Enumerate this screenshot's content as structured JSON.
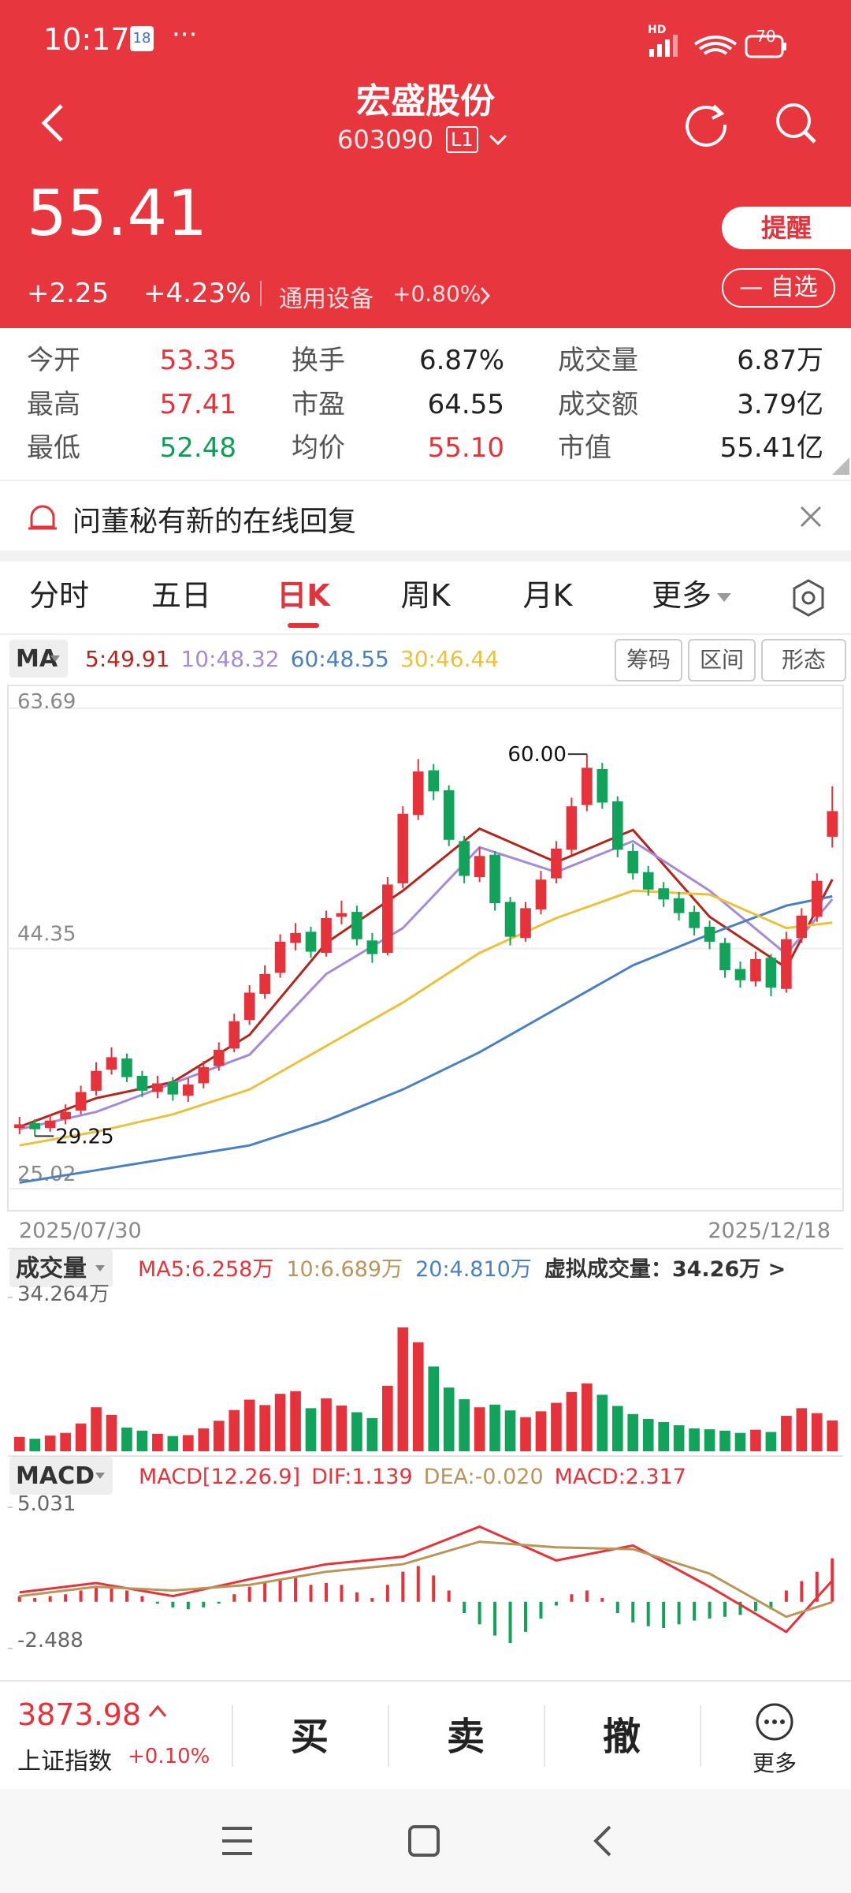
{
  "status": {
    "time": "10:17",
    "badge": "18",
    "net": "HD",
    "battery": "70"
  },
  "header": {
    "name": "宏盛股份",
    "code": "603090",
    "level": "L1",
    "price": "55.41",
    "change": "+2.25",
    "change_pct": "+4.23%",
    "sector": "通用设备",
    "sector_change": "+0.80%",
    "remind": "提醒",
    "watch": "自选"
  },
  "quote": {
    "rows": [
      [
        "今开",
        "53.35",
        "换手",
        "6.87%",
        "成交量",
        "6.87万"
      ],
      [
        "最高",
        "57.41",
        "市盈",
        "64.55",
        "成交额",
        "3.79亿"
      ],
      [
        "最低",
        "52.48",
        "均价",
        "55.10",
        "市值",
        "55.41亿"
      ]
    ]
  },
  "notice": {
    "text": "问董秘有新的在线回复"
  },
  "tabs": {
    "items": [
      "分时",
      "五日",
      "日K",
      "周K",
      "月K",
      "更多"
    ],
    "active": 2
  },
  "tools": [
    "筹码",
    "区间",
    "形态"
  ],
  "chart_data": [
    {
      "type": "candlestick",
      "selector": "MA",
      "x_start": "2025/07/30",
      "x_end": "2025/12/18",
      "ylim": [
        25.02,
        63.69
      ],
      "yticks": [
        63.69,
        44.35,
        25.02
      ],
      "up_color": "#e5323b",
      "down_color": "#12a35a",
      "open": [
        29.9,
        30.3,
        29.9,
        30.6,
        31.3,
        32.9,
        34.6,
        35.5,
        34.1,
        32.8,
        33.6,
        32.5,
        33.5,
        34.9,
        36.3,
        38.6,
        40.7,
        42.4,
        44.8,
        45.7,
        44.0,
        46.9,
        47.3,
        45.0,
        44.0,
        49.6,
        55.1,
        58.7,
        57.1,
        53.0,
        50.1,
        51.9,
        48.1,
        45.2,
        47.5,
        50.0,
        52.3,
        55.9,
        58.8,
        56.2,
        52.2,
        50.5,
        49.2,
        48.4,
        47.3,
        46.1,
        44.8,
        42.7,
        41.7,
        43.6,
        41.1,
        45.2,
        46.9,
        53.35
      ],
      "high": [
        30.8,
        30.6,
        31.0,
        31.8,
        33.3,
        35.2,
        36.4,
        35.9,
        34.5,
        34.1,
        34.0,
        33.9,
        35.3,
        36.8,
        39.1,
        41.4,
        43.0,
        45.5,
        46.4,
        46.1,
        47.4,
        48.2,
        47.8,
        45.6,
        50.1,
        55.8,
        59.6,
        59.2,
        57.5,
        53.4,
        52.5,
        52.2,
        48.5,
        48.1,
        50.6,
        53.0,
        56.5,
        60.0,
        59.3,
        56.6,
        52.8,
        51.0,
        49.7,
        48.9,
        47.8,
        46.6,
        45.2,
        43.3,
        44.1,
        43.9,
        45.7,
        47.6,
        50.4,
        57.41
      ],
      "low": [
        29.4,
        29.25,
        29.6,
        30.2,
        31.0,
        32.5,
        34.2,
        33.6,
        32.4,
        32.3,
        32.1,
        32.0,
        33.1,
        34.5,
        36.0,
        38.2,
        40.3,
        42.0,
        44.2,
        43.6,
        43.7,
        46.3,
        44.6,
        43.2,
        43.8,
        49.2,
        54.7,
        56.3,
        52.6,
        49.6,
        49.7,
        47.4,
        44.6,
        44.9,
        47.1,
        49.6,
        51.9,
        55.4,
        55.6,
        51.7,
        49.9,
        48.6,
        47.7,
        46.6,
        45.4,
        44.3,
        42.0,
        41.2,
        41.3,
        40.5,
        40.8,
        44.8,
        46.5,
        52.48
      ],
      "close": [
        30.2,
        29.8,
        30.5,
        31.2,
        32.8,
        34.5,
        35.6,
        34.0,
        32.9,
        33.5,
        32.6,
        33.4,
        34.8,
        36.2,
        38.5,
        40.8,
        42.3,
        44.9,
        45.6,
        44.1,
        46.8,
        47.2,
        45.1,
        43.9,
        49.5,
        55.2,
        58.6,
        57.0,
        53.1,
        50.2,
        51.8,
        48.0,
        45.3,
        47.6,
        49.9,
        52.4,
        55.8,
        58.9,
        56.1,
        52.3,
        50.4,
        49.1,
        48.3,
        47.2,
        46.0,
        44.9,
        42.6,
        41.8,
        43.5,
        41.2,
        45.1,
        47.0,
        49.8,
        55.41
      ],
      "max_label": {
        "value": 60,
        "label": "60.00"
      },
      "min_label": {
        "value": 29.25,
        "label": "29.25"
      },
      "line_x": [
        0,
        5,
        10,
        15,
        20,
        25,
        30,
        35,
        40,
        45,
        50,
        53
      ],
      "lines": [
        {
          "name": "5:49.91",
          "color": "#b3261e",
          "values": [
            30.0,
            32.3,
            33.6,
            37.4,
            44.8,
            49.0,
            54.0,
            51.3,
            53.9,
            46.9,
            42.8,
            49.91
          ]
        },
        {
          "name": "10:48.32",
          "color": "#a58ad8",
          "values": [
            29.8,
            31.2,
            33.5,
            35.8,
            42.3,
            46.0,
            52.5,
            50.5,
            53.0,
            49.0,
            43.9,
            48.32
          ]
        },
        {
          "name": "60:48.55",
          "color": "#4a7fc1",
          "values": [
            25.5,
            26.5,
            27.5,
            28.5,
            30.5,
            33.0,
            36.0,
            39.5,
            43.0,
            45.5,
            47.8,
            48.55
          ]
        },
        {
          "name": "30:46.44",
          "color": "#e9c23c",
          "values": [
            28.5,
            29.6,
            31.0,
            33.0,
            36.5,
            40.0,
            44.0,
            46.8,
            49.0,
            48.7,
            46.0,
            46.44
          ]
        }
      ]
    },
    {
      "type": "bar",
      "selector": "成交量",
      "legend": [
        {
          "text": "MA5:6.258万",
          "color": "#e5323b"
        },
        {
          "text": "10:6.689万",
          "color": "#b8955a"
        },
        {
          "text": "20:4.810万",
          "color": "#4a7fc1"
        },
        {
          "text": "虚拟成交量：34.26万 >",
          "color": "#333"
        }
      ],
      "ylim": [
        0,
        34.264
      ],
      "yticks": [
        {
          "value": 34.264,
          "label": "34.264万"
        }
      ],
      "values": [
        3.2,
        2.8,
        3.5,
        4.1,
        6.2,
        9.8,
        8.1,
        5.3,
        4.6,
        3.9,
        3.4,
        3.6,
        5.1,
        6.8,
        9.2,
        11.5,
        10.3,
        12.8,
        13.4,
        9.6,
        11.8,
        10.2,
        8.7,
        7.4,
        14.6,
        27.6,
        24.3,
        18.9,
        14.2,
        11.6,
        9.8,
        10.4,
        9.1,
        7.6,
        8.9,
        10.8,
        13.2,
        15.1,
        12.6,
        10.1,
        8.3,
        7.2,
        6.5,
        5.8,
        5.1,
        4.9,
        4.6,
        4.1,
        4.8,
        4.3,
        7.9,
        9.6,
        8.5,
        6.87
      ]
    },
    {
      "type": "macd",
      "selector": "MACD",
      "legend": [
        {
          "text": "MACD[12.26.9]",
          "color": "#e5323b"
        },
        {
          "text": "DIF:1.139",
          "color": "#e5323b"
        },
        {
          "text": "DEA:-0.020",
          "color": "#b8955a"
        },
        {
          "text": "MACD:2.317",
          "color": "#e5323b"
        }
      ],
      "ylim": [
        -2.488,
        5.031
      ],
      "yticks": [
        5.031,
        -2.488
      ],
      "values": [
        0.3,
        0.2,
        0.3,
        0.4,
        0.6,
        0.8,
        0.9,
        0.6,
        0.3,
        -0.1,
        -0.3,
        -0.4,
        -0.3,
        -0.1,
        0.4,
        0.8,
        1.0,
        1.2,
        1.3,
        0.9,
        1.0,
        0.9,
        0.5,
        0.2,
        0.9,
        1.6,
        1.9,
        1.4,
        0.6,
        -0.6,
        -1.2,
        -1.8,
        -2.2,
        -1.6,
        -0.9,
        -0.2,
        0.4,
        0.6,
        0.2,
        -0.6,
        -1.1,
        -1.3,
        -1.4,
        -1.2,
        -1.0,
        -0.9,
        -0.8,
        -0.7,
        -0.5,
        -0.4,
        0.6,
        1.1,
        1.6,
        2.317
      ],
      "line_x": [
        0,
        5,
        10,
        15,
        20,
        25,
        30,
        35,
        40,
        45,
        50,
        53
      ],
      "lines": [
        {
          "color": "#e5323b",
          "values": [
            0.5,
            1.0,
            0.3,
            1.2,
            2.0,
            2.4,
            4.0,
            2.2,
            3.0,
            0.8,
            -1.6,
            1.139
          ]
        },
        {
          "color": "#b8955a",
          "values": [
            0.3,
            0.8,
            0.6,
            0.9,
            1.6,
            2.0,
            3.2,
            2.9,
            2.8,
            1.5,
            -0.8,
            -0.02
          ]
        }
      ]
    }
  ],
  "bottom": {
    "index_value": "3873.98",
    "index_name": "上证指数",
    "index_change": "+0.10%",
    "buttons": [
      "买",
      "卖",
      "撤"
    ],
    "more": "更多"
  }
}
